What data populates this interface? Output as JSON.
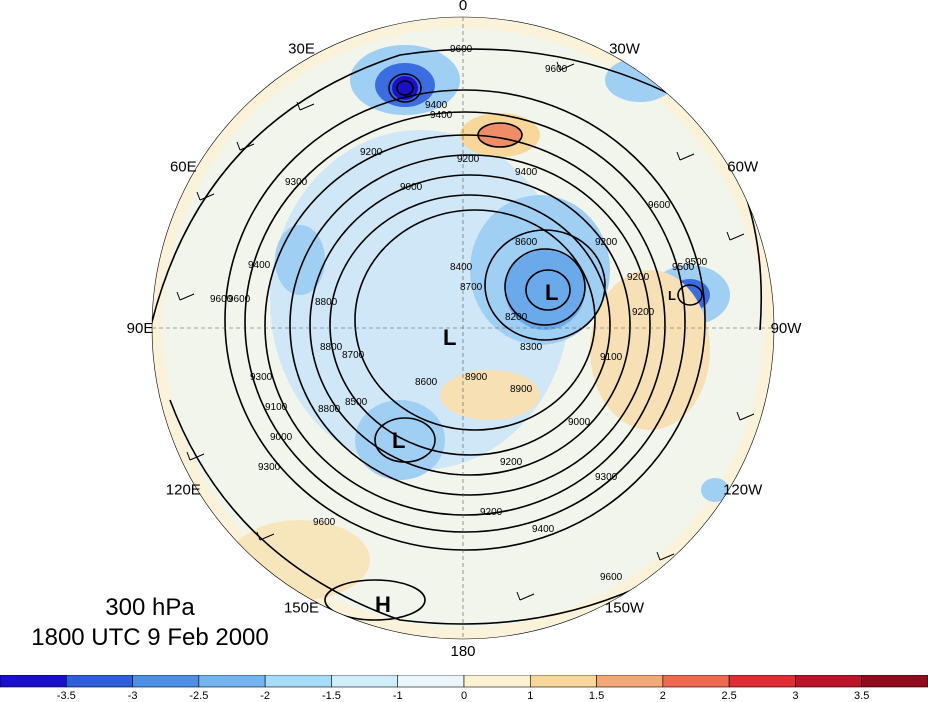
{
  "title": {
    "level": "300 hPa",
    "datetime": "1800 UTC 9 Feb 2000"
  },
  "longitude_labels": [
    {
      "text": "0",
      "lon": 0
    },
    {
      "text": "30E",
      "lon": 30
    },
    {
      "text": "60E",
      "lon": 60
    },
    {
      "text": "90E",
      "lon": 90
    },
    {
      "text": "120E",
      "lon": 120
    },
    {
      "text": "150E",
      "lon": 150
    },
    {
      "text": "180",
      "lon": 180
    },
    {
      "text": "150W",
      "lon": -150
    },
    {
      "text": "120W",
      "lon": -120
    },
    {
      "text": "90W",
      "lon": -90
    },
    {
      "text": "60W",
      "lon": -60
    },
    {
      "text": "30W",
      "lon": -30
    }
  ],
  "contour_labels": [
    "9600",
    "9600",
    "9600",
    "9500",
    "9400",
    "9200",
    "9300",
    "9400",
    "9600",
    "9400",
    "9400",
    "9200",
    "9000",
    "8800",
    "8700",
    "8800",
    "8500",
    "8600",
    "8400",
    "8700",
    "8600",
    "8900",
    "8900",
    "9000",
    "9100",
    "9200",
    "9300",
    "9300",
    "9200",
    "9600",
    "9400",
    "9200",
    "9200",
    "9600",
    "9600",
    "9500",
    "9300",
    "9200",
    "9100",
    "9000",
    "8800",
    "8200",
    "8300"
  ],
  "pressure_systems": [
    "L",
    "L",
    "L",
    "L",
    "H"
  ],
  "colorbar": {
    "ticks": [
      "-3.5",
      "-3",
      "-2.5",
      "-2",
      "-1.5",
      "-1",
      "0",
      "1",
      "1.5",
      "2",
      "2.5",
      "3",
      "3.5"
    ],
    "colors": [
      "#1a10c8",
      "#2c5fd8",
      "#4e8fe6",
      "#74b4f0",
      "#a6dcf8",
      "#cfeefa",
      "#eaf6fb",
      "#fbf2d4",
      "#f7d79a",
      "#f3a878",
      "#ec6a52",
      "#dc2e34",
      "#b8152a",
      "#8e0c1e"
    ]
  }
}
